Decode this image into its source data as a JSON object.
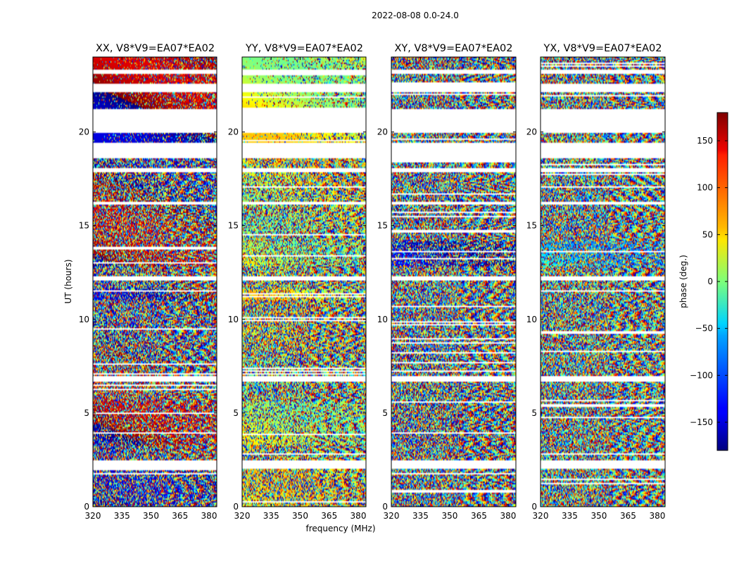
{
  "chart_data": {
    "type": "heatmap",
    "suptitle": "2022-08-08 0.0-24.0",
    "panels": [
      {
        "title": "XX, V8*V9=EA07*EA02",
        "pol": "XX"
      },
      {
        "title": "YY, V8*V9=EA07*EA02",
        "pol": "YY"
      },
      {
        "title": "XY, V8*V9=EA07*EA02",
        "pol": "XY"
      },
      {
        "title": "YX, V8*V9=EA07*EA02",
        "pol": "YX"
      }
    ],
    "xlabel": "frequency (MHz)",
    "ylabel": "UT (hours)",
    "xlim": [
      320,
      384
    ],
    "ylim": [
      0,
      24
    ],
    "xticks": [
      320,
      335,
      350,
      365,
      380
    ],
    "yticks": [
      0,
      5,
      10,
      15,
      20
    ],
    "colorbar": {
      "label": "phase (deg.)",
      "vmin": -180,
      "vmax": 180,
      "ticks": [
        -150,
        -100,
        -50,
        0,
        50,
        100,
        150
      ],
      "tick_labels": [
        "−150",
        "−100",
        "−50",
        "0",
        "50",
        "100",
        "150"
      ],
      "colormap": "jet"
    },
    "flagged_ut_ranges": [
      [
        18.6,
        19.4
      ],
      [
        19.95,
        21.2
      ],
      [
        22.1,
        22.55
      ],
      [
        23.1,
        23.3
      ],
      [
        12.1,
        12.3
      ],
      [
        6.7,
        7.0
      ],
      [
        2.05,
        2.5
      ],
      [
        16.1,
        16.3
      ],
      [
        17.85,
        18.05
      ]
    ]
  }
}
